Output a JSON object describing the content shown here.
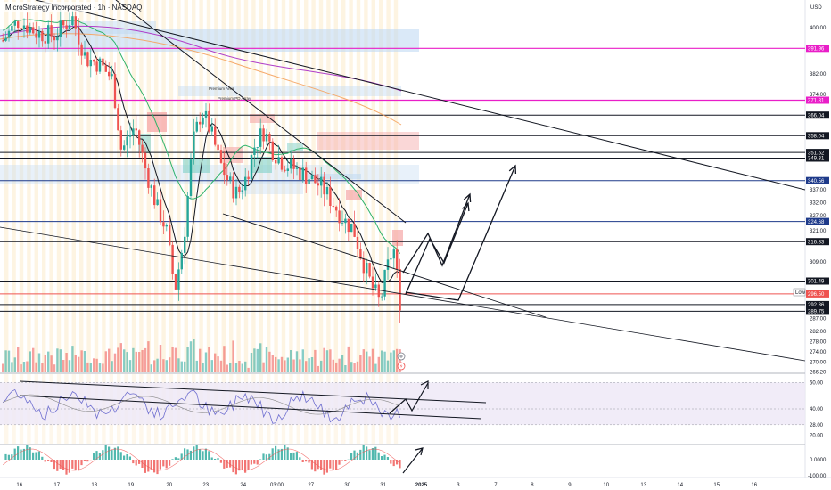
{
  "title": "MicroStrategy Incorporated · 1h · NASDAQ",
  "currency": "USD",
  "colors": {
    "up": "#26a69a",
    "down": "#ef5350",
    "line": "#131722",
    "magenta": "#e91ec8",
    "green_ma": "#2fb36b",
    "orange_ma": "#f5a25d",
    "purple_ma": "#b03ec8",
    "rsi": "#6f6fd0",
    "rsi_band": "#ede7f6",
    "vertical_band": "#fbe9c6",
    "zone_blue": "#bcd7f2",
    "zone_red": "#f5a7a7",
    "zone_teal": "#7fd0c8"
  },
  "zones": {
    "premium_area": "Premium Area",
    "premium_pd": "Premium PD Array",
    "low_tag": "Low"
  },
  "x_axis": {
    "ticks": [
      "16",
      "17",
      "18",
      "19",
      "20",
      "23",
      "24",
      "03:00",
      "27",
      "30",
      "31",
      "2025",
      "3",
      "7",
      "8",
      "9",
      "10",
      "13",
      "14",
      "15",
      "16"
    ]
  },
  "chart_data": {
    "type": "candlestick",
    "title": "MicroStrategy Incorporated · 1h · NASDAQ",
    "ylim": [
      266,
      408
    ],
    "price_ticks": [
      "400.00",
      "382.00",
      "374.00",
      "337.00",
      "332.00",
      "327.00",
      "321.00",
      "309.00",
      "287.00",
      "282.00",
      "278.00",
      "274.00",
      "270.00",
      "266.20"
    ],
    "levels": [
      {
        "label": "391.96",
        "value": 391.96,
        "style": "magenta"
      },
      {
        "label": "371.81",
        "value": 371.81,
        "style": "magenta"
      },
      {
        "label": "366.04",
        "value": 366.04,
        "style": "dark"
      },
      {
        "label": "358.04",
        "value": 358.04,
        "style": "dark"
      },
      {
        "label": "351.52",
        "value": 351.52,
        "style": "dark"
      },
      {
        "label": "349.31",
        "value": 349.31,
        "style": "dark"
      },
      {
        "label": "340.56",
        "value": 340.56,
        "style": "navy"
      },
      {
        "label": "324.68",
        "value": 324.68,
        "style": "navy"
      },
      {
        "label": "316.83",
        "value": 316.83,
        "style": "dark"
      },
      {
        "label": "301.49",
        "value": 301.49,
        "style": "dark"
      },
      {
        "label": "296.50",
        "value": 296.5,
        "style": "red"
      },
      {
        "label": "292.36",
        "value": 292.36,
        "style": "dark"
      },
      {
        "label": "289.75",
        "value": 289.75,
        "style": "dark"
      }
    ],
    "rsi": {
      "ticks": [
        "60.00",
        "40.00",
        "28.00",
        "20.00"
      ],
      "ylim": [
        15,
        65
      ]
    },
    "oscillator": {
      "ticks": [
        "0.0000",
        "-100.00"
      ]
    }
  }
}
